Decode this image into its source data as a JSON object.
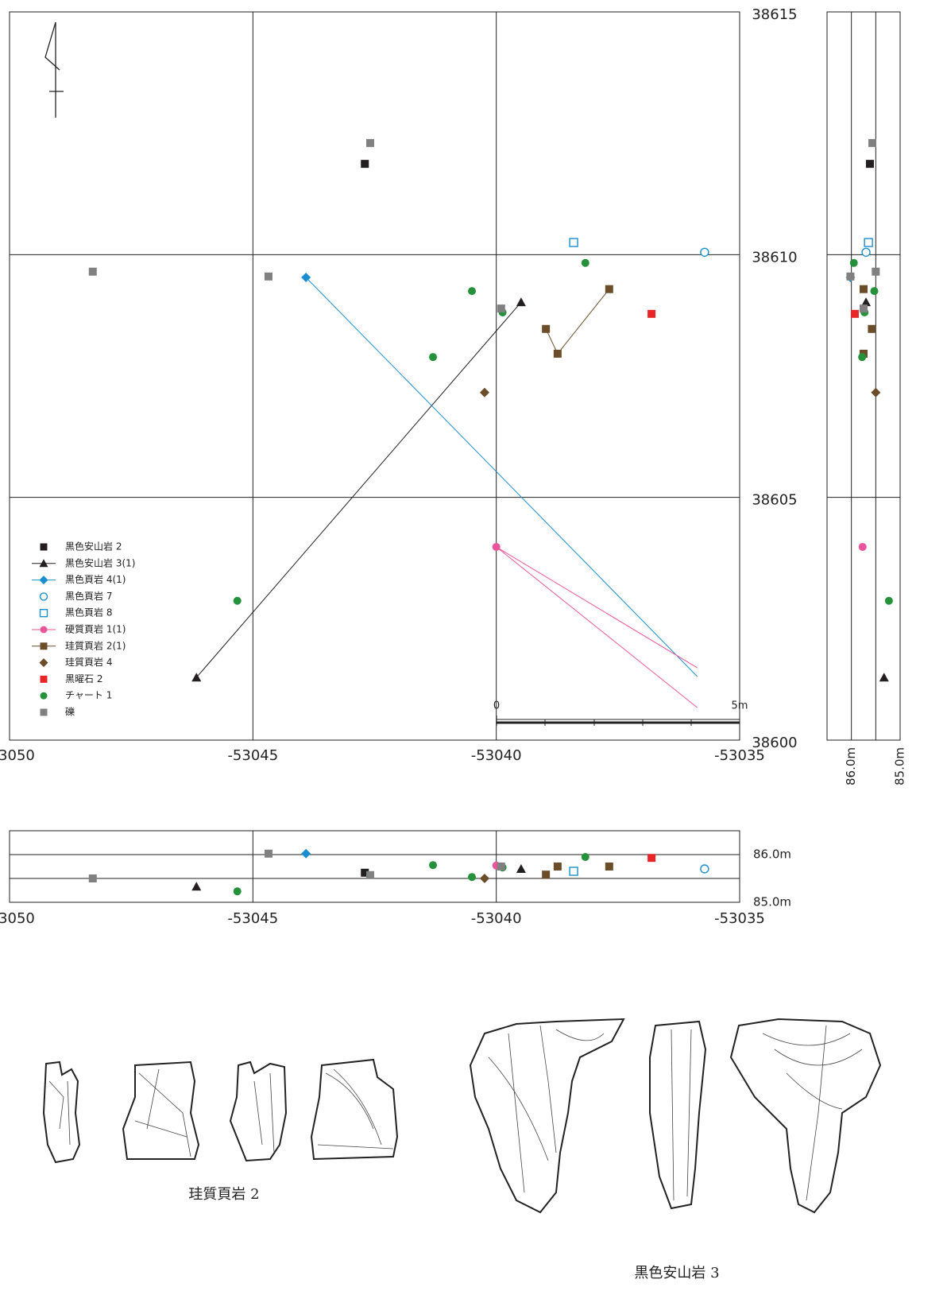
{
  "chart_data": {
    "type": "scatter",
    "xticks": [
      -53050,
      -53045,
      -53040,
      -53035
    ],
    "yticks": [
      38600,
      38605,
      38610,
      38615
    ],
    "xlim": [
      -53050,
      -53035
    ],
    "ylim": [
      38600,
      38615
    ],
    "zlim": [
      85.0,
      86.5
    ],
    "zticks": [
      {
        "value": 86.0,
        "label": "86.0m"
      },
      {
        "value": 85.0,
        "label": "85.0m"
      }
    ],
    "zgrid": [
      86.0,
      85.5
    ],
    "grid": true,
    "scale_bar": {
      "labels": [
        "0",
        "5m"
      ]
    },
    "series": [
      {
        "name": "黒色安山岩 2",
        "color": "#231f20",
        "marker": "square",
        "x": [
          -53042.7
        ],
        "y": [
          38611.87
        ],
        "z": [
          85.62
        ]
      },
      {
        "name": "黒色安山岩 3(1)",
        "color": "#231f20",
        "marker": "triangle",
        "connect": true,
        "x": [
          -53039.49,
          -53046.16
        ],
        "y": [
          38609.02,
          38601.29
        ],
        "z": [
          85.7,
          85.33
        ]
      },
      {
        "name": "黒色頁岩 4(1)",
        "color": "#1a8fd0",
        "marker": "diamond",
        "x": [
          -53043.91
        ],
        "y": [
          38609.53
        ],
        "z": [
          86.02
        ],
        "line_to": {
          "x": [
            -53035.87
          ],
          "y": [
            38601.31
          ]
        }
      },
      {
        "name": "黒色頁岩 7",
        "color": "#1a8fd0",
        "marker": "open-circle",
        "x": [
          -53035.72
        ],
        "y": [
          38610.05
        ],
        "z": [
          85.7
        ]
      },
      {
        "name": "黒色頁岩 8",
        "color": "#1a8fd0",
        "marker": "open-square",
        "x": [
          -53038.41
        ],
        "y": [
          38610.25
        ],
        "z": [
          85.65
        ]
      },
      {
        "name": "硬質頁岩 1(1)",
        "color": "#e8559b",
        "marker": "circle",
        "x": [
          -53040.0
        ],
        "y": [
          38603.98
        ],
        "z": [
          85.77
        ],
        "line_to": {
          "x": [
            -53035.87,
            -53035.87
          ],
          "y": [
            38601.49,
            38600.67
          ]
        }
      },
      {
        "name": "珪質頁岩 2(1)",
        "color": "#6b4d2a",
        "marker": "square",
        "connect": true,
        "x": [
          -53038.98,
          -53038.74,
          -53037.68
        ],
        "y": [
          38608.47,
          38607.96,
          38609.29
        ],
        "z": [
          85.58,
          85.75,
          85.75
        ]
      },
      {
        "name": "珪質頁岩 4",
        "color": "#6b4d2a",
        "marker": "diamond",
        "x": [
          -53040.24
        ],
        "y": [
          38607.16
        ],
        "z": [
          85.5
        ]
      },
      {
        "name": "黒曜石 2",
        "color": "#e8262a",
        "marker": "square",
        "x": [
          -53036.81
        ],
        "y": [
          38608.78
        ],
        "z": [
          85.93
        ]
      },
      {
        "name": "チャート 1",
        "color": "#25913a",
        "marker": "circle",
        "x": [
          -53038.17,
          -53040.5,
          -53039.87,
          -53041.3,
          -53045.32
        ],
        "y": [
          38609.83,
          38609.25,
          38608.81,
          38607.89,
          38602.87
        ],
        "z": [
          85.95,
          85.53,
          85.73,
          85.78,
          85.23
        ]
      },
      {
        "name": "礫",
        "color": "#808080",
        "marker": "square",
        "x": [
          -53042.59,
          -53048.29,
          -53044.68,
          -53039.9
        ],
        "y": [
          38612.3,
          38609.65,
          38609.55,
          38608.89
        ],
        "z": [
          85.57,
          85.5,
          86.02,
          85.75
        ]
      }
    ]
  },
  "drawings": [
    {
      "caption": "珪質頁岩 2"
    },
    {
      "caption": "黒色安山岩 3"
    }
  ]
}
